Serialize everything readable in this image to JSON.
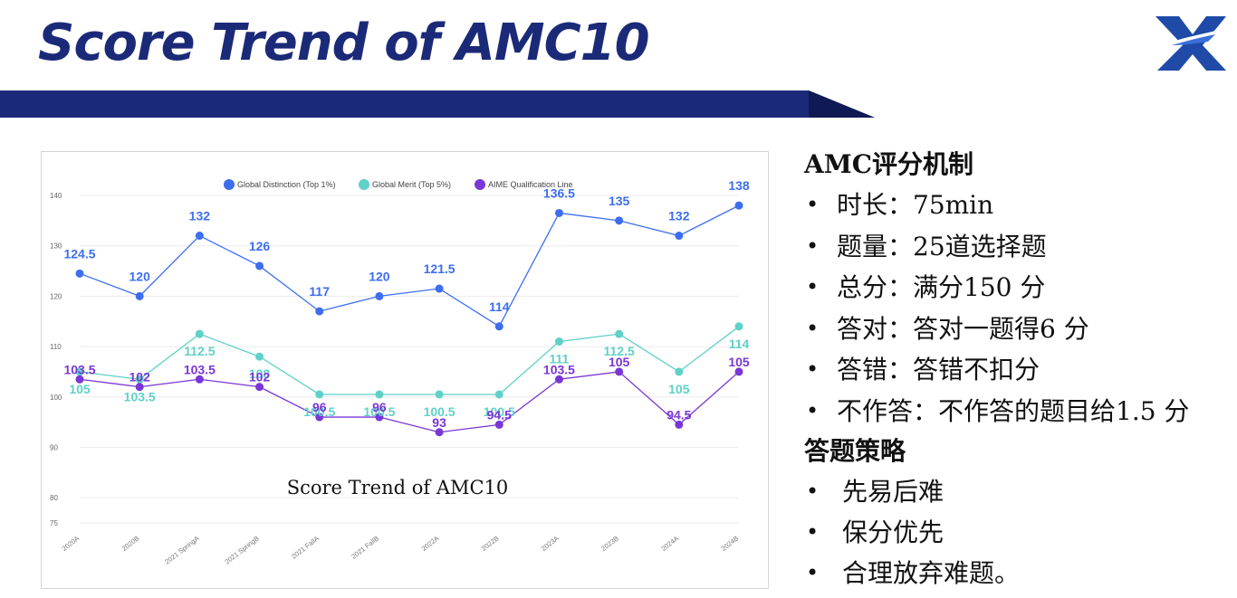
{
  "slide": {
    "title": "Score Trend of AMC10"
  },
  "chart_data": {
    "type": "line",
    "title": "Score Trend of AMC10",
    "categories": [
      "2020A",
      "2020B",
      "2021 SpringA",
      "2021 SpringB",
      "2021 FallA",
      "2021 FallB",
      "2022A",
      "2022B",
      "2023A",
      "2023B",
      "2024A",
      "2024B"
    ],
    "y_ticks": [
      75,
      80,
      90,
      100,
      110,
      120,
      130,
      140
    ],
    "ylim": [
      75,
      140
    ],
    "grid": true,
    "legend_position": "top",
    "series": [
      {
        "name": "Global Distinction (Top 1%)",
        "color": "#3d6ef0",
        "values": [
          124.5,
          120,
          132,
          126,
          117,
          120,
          121.5,
          114,
          136.5,
          135,
          132,
          138
        ]
      },
      {
        "name": "Global Merit (Top 5%)",
        "color": "#5fd1c8",
        "values": [
          105,
          103.5,
          112.5,
          108,
          100.5,
          100.5,
          100.5,
          100.5,
          111,
          112.5,
          105,
          114
        ]
      },
      {
        "name": "AIME Qualification Line",
        "color": "#7a36d6",
        "values": [
          103.5,
          102,
          103.5,
          102,
          96,
          96,
          93,
          94.5,
          103.5,
          105,
          94.5,
          105
        ]
      }
    ]
  },
  "info": {
    "mechanism_title": "AMC评分机制",
    "mechanism_items": [
      "时长：75min",
      "题量：25道选择题",
      "总分：满分150 分",
      "答对：答对一题得6 分",
      "答错：答错不扣分",
      "不作答：不作答的题目给1.5 分"
    ],
    "strategy_title": "答题策略",
    "strategy_items": [
      "先易后难",
      "保分优先",
      "合理放弃难题。"
    ],
    "bullet": "•"
  }
}
